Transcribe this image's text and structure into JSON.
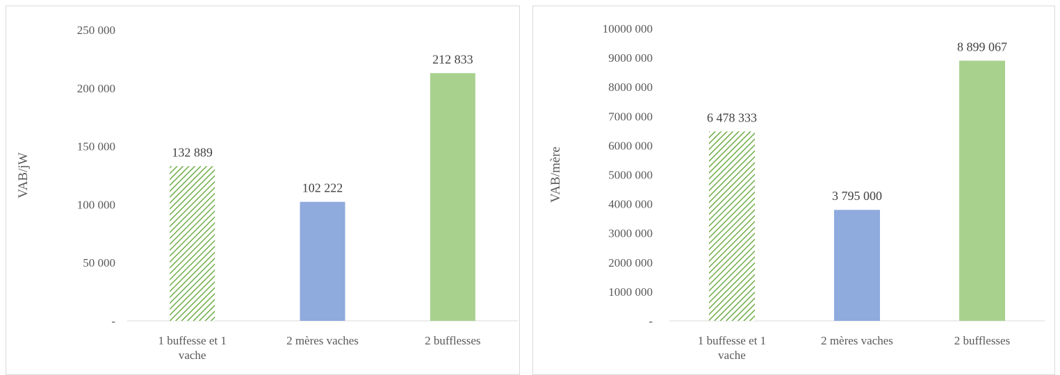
{
  "colors": {
    "green": "#a9d18e",
    "blue": "#8faadc",
    "hatch_fg": "#70ad47",
    "axis": "#d9d9d9",
    "text": "#595959"
  },
  "chart_data": [
    {
      "type": "bar",
      "title": "",
      "xlabel": "",
      "ylabel": "VAB/jW",
      "categories": [
        [
          "1 buffesse et 1",
          "vache"
        ],
        [
          "2 mères vaches"
        ],
        [
          "2 bufflesses"
        ]
      ],
      "values": [
        132889,
        102222,
        212833
      ],
      "value_labels": [
        "132 889",
        "102 222",
        "212 833"
      ],
      "bar_styles": [
        "hatched-green",
        "blue",
        "green"
      ],
      "ylim": [
        0,
        250000
      ],
      "yticks": [
        0,
        50000,
        100000,
        150000,
        200000,
        250000
      ],
      "ytick_labels": [
        "-",
        "50 000",
        "100 000",
        "150 000",
        "200 000",
        "250 000"
      ],
      "grid": false,
      "legend": "none"
    },
    {
      "type": "bar",
      "title": "",
      "xlabel": "",
      "ylabel": "VAB/mère",
      "categories": [
        [
          "1 buffesse et 1",
          "vache"
        ],
        [
          "2 mères vaches"
        ],
        [
          "2 bufflesses"
        ]
      ],
      "values": [
        6478333,
        3795000,
        8899067
      ],
      "value_labels": [
        "6 478 333",
        "3 795 000",
        "8 899 067"
      ],
      "bar_styles": [
        "hatched-green",
        "blue",
        "green"
      ],
      "ylim": [
        0,
        10000000
      ],
      "yticks": [
        0,
        1000000,
        2000000,
        3000000,
        4000000,
        5000000,
        6000000,
        7000000,
        8000000,
        9000000,
        10000000
      ],
      "ytick_labels": [
        "-",
        "1000 000",
        "2000 000",
        "3000 000",
        "4000 000",
        "5000 000",
        "6000 000",
        "7000 000",
        "8000 000",
        "9000 000",
        "10000 000"
      ],
      "grid": false,
      "legend": "none"
    }
  ]
}
